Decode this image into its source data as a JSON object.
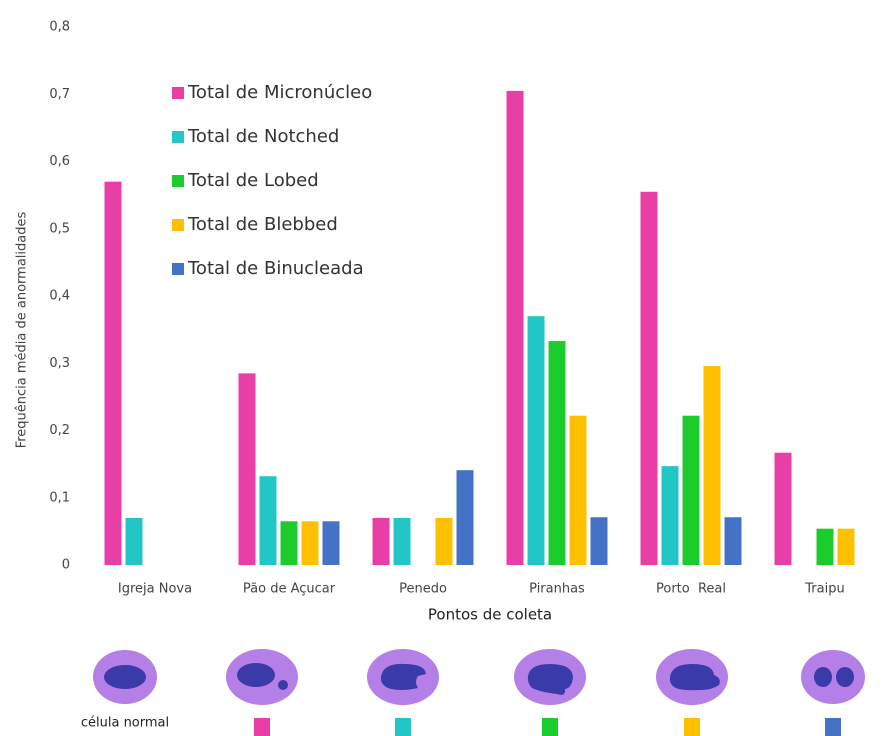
{
  "chart_data": {
    "type": "bar",
    "x_label": "Pontos de coleta",
    "y_label": "Frequência média de anormalidades",
    "categories": [
      "Igreja Nova",
      "Pão de Açucar",
      "Penedo",
      "Piranhas",
      "Porto  Real",
      "Traipu"
    ],
    "series": [
      {
        "name": "Total de Micronúcleo",
        "color": "#e93ea6",
        "values": [
          0.57,
          0.285,
          0.07,
          0.705,
          0.555,
          0.167
        ]
      },
      {
        "name": "Total de Notched",
        "color": "#22c6c6",
        "values": [
          0.07,
          0.132,
          0.07,
          0.37,
          0.147,
          0
        ]
      },
      {
        "name": "Total de Lobed",
        "color": "#1ccc2c",
        "values": [
          0,
          0.065,
          0,
          0.333,
          0.222,
          0.054
        ]
      },
      {
        "name": "Total de Blebbed",
        "color": "#ffc000",
        "values": [
          0,
          0.065,
          0.07,
          0.222,
          0.296,
          0.054
        ]
      },
      {
        "name": "Total de Binucleada",
        "color": "#4472c4",
        "values": [
          0,
          0.065,
          0.141,
          0.071,
          0.071,
          0
        ]
      }
    ],
    "ylim": [
      0,
      0.8
    ],
    "yticks": [
      0,
      {
        "value": 0.1,
        "label": "0,1"
      },
      {
        "value": 0.2,
        "label": "0,2"
      },
      {
        "value": 0.3,
        "label": "0,3"
      },
      {
        "value": 0.4,
        "label": "0,4"
      },
      {
        "value": 0.5,
        "label": "0,5"
      },
      {
        "value": 0.6,
        "label": "0,6"
      },
      {
        "value": 0.7,
        "label": "0,7"
      },
      {
        "value": 0.8,
        "label": "0,8"
      }
    ],
    "legend": "upper left",
    "cell_key_label": "célula normal"
  }
}
